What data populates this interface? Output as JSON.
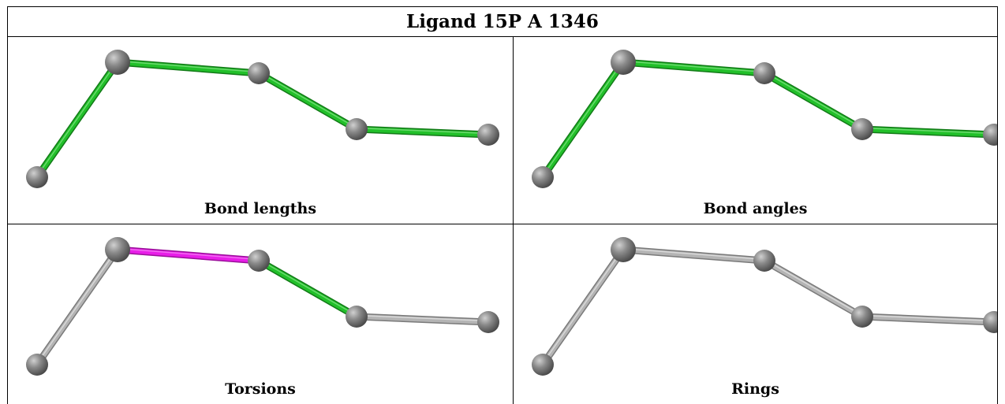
{
  "title": "Ligand 15P A 1346",
  "colors": {
    "ok": "#22c02a",
    "outlier": "#e81ee8",
    "none": "#b4b4b4",
    "atom": "#7d7d7d"
  },
  "panels": [
    {
      "caption": "Bond lengths",
      "bond_colors": [
        "ok",
        "ok",
        "ok",
        "ok"
      ]
    },
    {
      "caption": "Bond angles",
      "bond_colors": [
        "ok",
        "ok",
        "ok",
        "ok"
      ]
    },
    {
      "caption": "Torsions",
      "bond_colors": [
        "none",
        "outlier",
        "ok",
        "none"
      ]
    },
    {
      "caption": "Rings",
      "bond_colors": [
        "none",
        "none",
        "none",
        "none"
      ]
    }
  ]
}
